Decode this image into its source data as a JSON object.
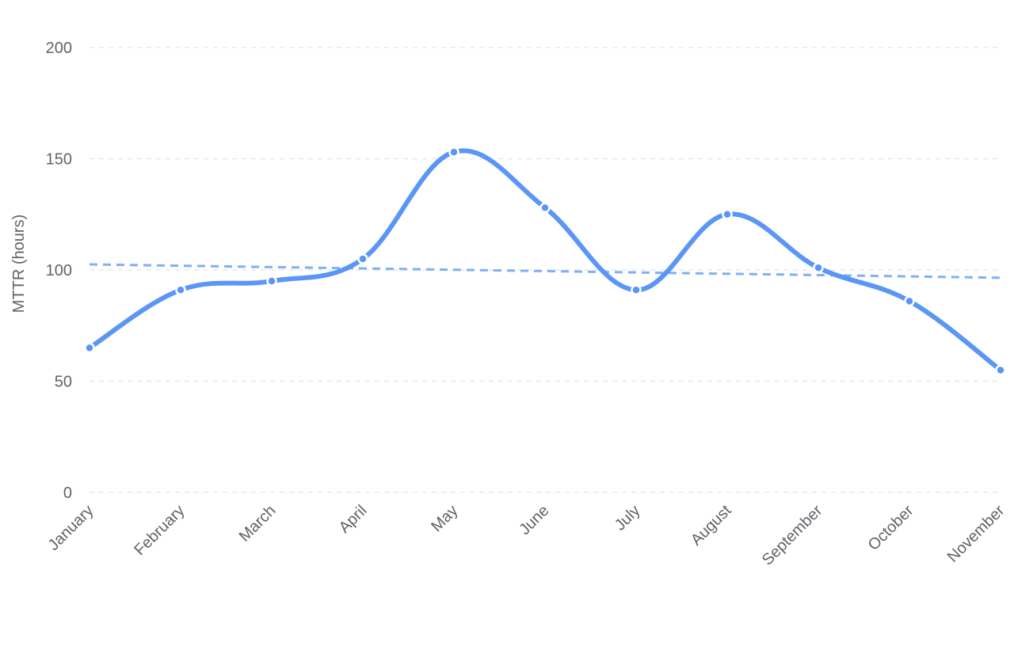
{
  "chart_data": {
    "type": "line",
    "categories": [
      "January",
      "February",
      "March",
      "April",
      "May",
      "June",
      "July",
      "August",
      "September",
      "October",
      "November"
    ],
    "series": [
      {
        "values": [
          65,
          91,
          95,
          105,
          153,
          128,
          91,
          125,
          101,
          86,
          55
        ],
        "color": "#5b96f7"
      }
    ],
    "trendline": {
      "start": 102.5,
      "end": 96.5,
      "color": "#7fb0f5",
      "style": "dashed"
    },
    "ylabel": "MTTR (hours)",
    "ylim": [
      0,
      200
    ],
    "yticks": [
      0,
      50,
      100,
      150,
      200
    ],
    "curve": "smooth",
    "grid": true,
    "grid_style": "dashed",
    "grid_color": "#e6e8ec",
    "tick_color": "#5f6368"
  }
}
